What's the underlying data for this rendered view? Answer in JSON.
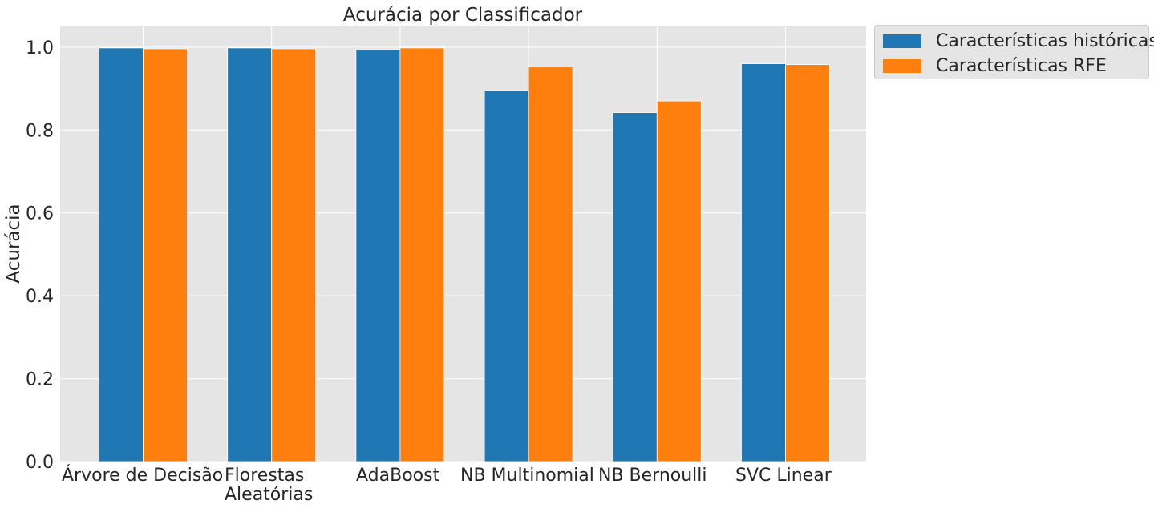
{
  "chart_data": {
    "type": "bar",
    "title": "Acurácia por Classificador",
    "xlabel": "",
    "ylabel": "Acurácia",
    "ylim": [
      0,
      1.05
    ],
    "yticks": [
      "0.0",
      "0.2",
      "0.4",
      "0.6",
      "0.8",
      "1.0"
    ],
    "categories": [
      [
        "Árvore de Decisão"
      ],
      [
        "Florestas",
        "Aleatórias"
      ],
      [
        "AdaBoost"
      ],
      [
        "NB Multinomial"
      ],
      [
        "NB Bernoulli"
      ],
      [
        "SVC Linear"
      ]
    ],
    "series": [
      {
        "name": "Características históricas",
        "color": "#1f77b4",
        "values": [
          0.998,
          0.998,
          0.994,
          0.895,
          0.842,
          0.96
        ]
      },
      {
        "name": "Características RFE",
        "color": "#ff7f0e",
        "values": [
          0.996,
          0.996,
          0.998,
          0.952,
          0.87,
          0.958
        ]
      }
    ],
    "grid": true,
    "legend_position": "upper right, outside plot"
  }
}
